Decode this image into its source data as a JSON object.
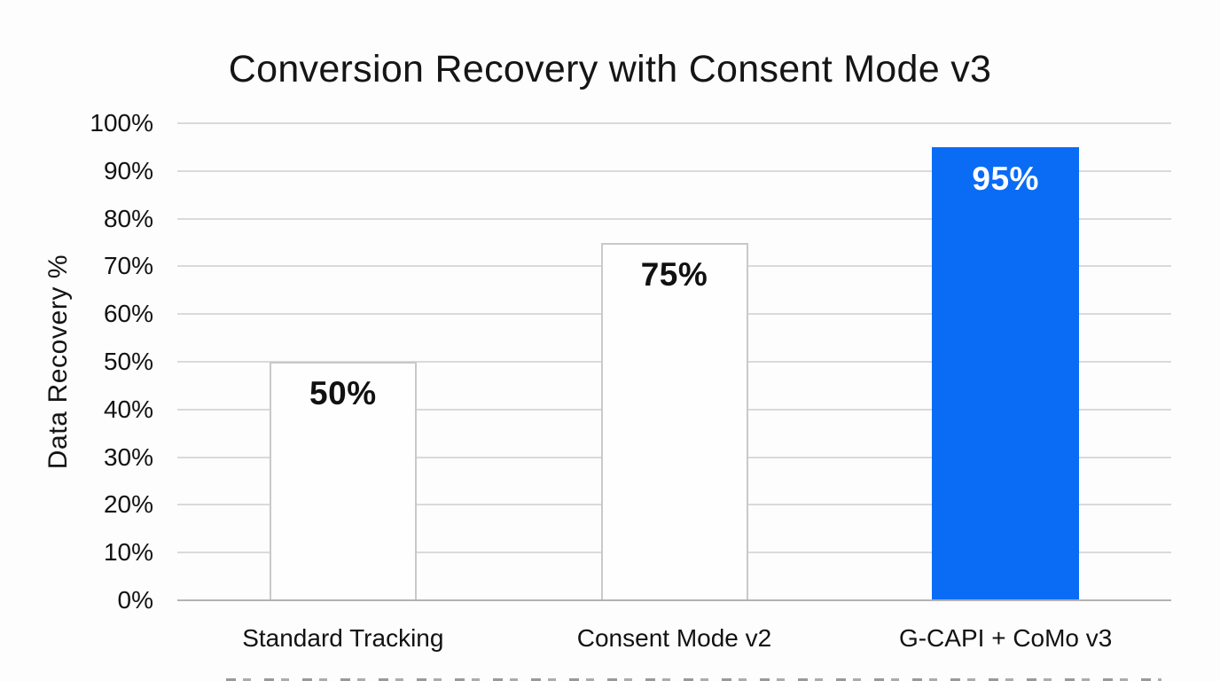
{
  "chart_data": {
    "type": "bar",
    "title": "Conversion Recovery with Consent Mode v3",
    "xlabel": "",
    "ylabel": "Data Recovery %",
    "categories": [
      "Standard Tracking",
      "Consent Mode v2",
      "G-CAPI + CoMo v3"
    ],
    "values": [
      50,
      75,
      95
    ],
    "value_labels": [
      "50%",
      "75%",
      "95%"
    ],
    "ylim": [
      0,
      100
    ],
    "ytick_step": 10,
    "ytick_labels": [
      "0%",
      "10%",
      "20%",
      "30%",
      "40%",
      "50%",
      "60%",
      "70%",
      "80%",
      "90%",
      "100%"
    ],
    "grid": "horizontal",
    "legend": "none",
    "bars": [
      {
        "category": "Standard Tracking",
        "value": 50,
        "label": "50%",
        "fill": "#fefefe",
        "border": "#c9c9c9",
        "label_color": "#111111"
      },
      {
        "category": "Consent Mode v2",
        "value": 75,
        "label": "75%",
        "fill": "#fefefe",
        "border": "#c9c9c9",
        "label_color": "#111111"
      },
      {
        "category": "G-CAPI + CoMo v3",
        "value": 95,
        "label": "95%",
        "fill": "#0a6cf5",
        "border": "#0a6cf5",
        "label_color": "#ffffff"
      }
    ],
    "colors": {
      "accent_blue": "#0a6cf5",
      "grid_line": "#dadada",
      "axis_line": "#b2b2b2",
      "text": "#121212",
      "background": "#fdfdfd"
    }
  }
}
